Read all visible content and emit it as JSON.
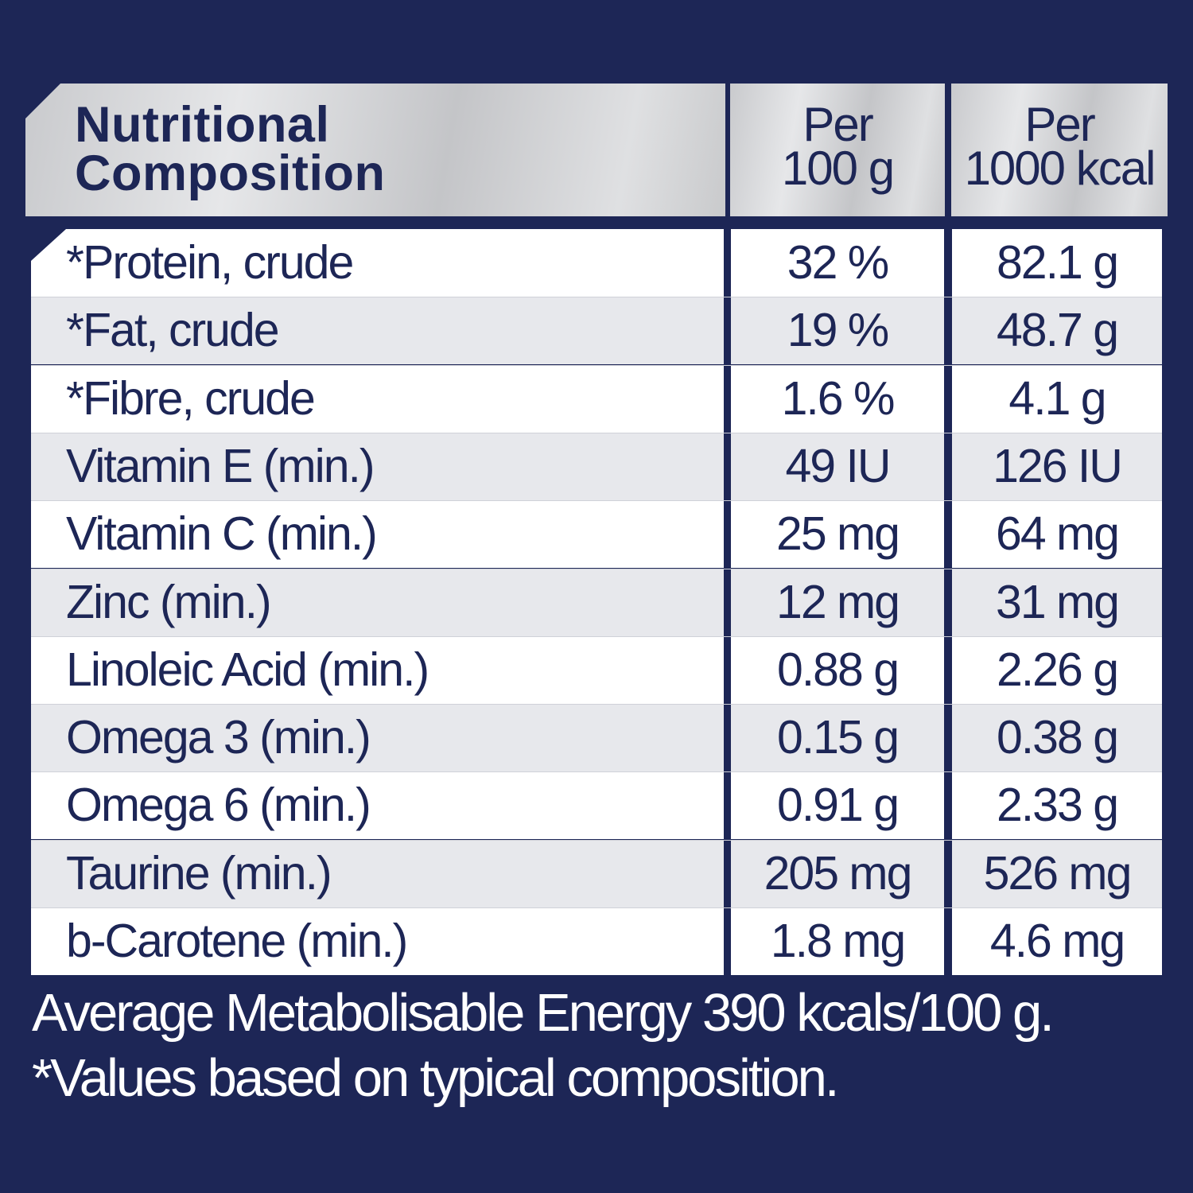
{
  "header": {
    "title_line1": "Nutritional",
    "title_line2": "Composition",
    "col2_line1": "Per",
    "col2_line2": "100 g",
    "col3_line1": "Per",
    "col3_line2": "1000 kcal"
  },
  "rows": [
    {
      "name": "*Protein, crude",
      "per100g": "32 %",
      "per1000kcal": "82.1 g"
    },
    {
      "name": "*Fat, crude",
      "per100g": "19 %",
      "per1000kcal": "48.7 g"
    },
    {
      "name": "*Fibre, crude",
      "per100g": "1.6 %",
      "per1000kcal": "4.1 g"
    },
    {
      "name": "Vitamin E (min.)",
      "per100g": "49 IU",
      "per1000kcal": "126 IU"
    },
    {
      "name": "Vitamin C (min.)",
      "per100g": "25 mg",
      "per1000kcal": "64 mg"
    },
    {
      "name": "Zinc (min.)",
      "per100g": "12 mg",
      "per1000kcal": "31 mg"
    },
    {
      "name": "Linoleic Acid (min.)",
      "per100g": "0.88 g",
      "per1000kcal": "2.26 g"
    },
    {
      "name": "Omega 3 (min.)",
      "per100g": "0.15 g",
      "per1000kcal": "0.38 g"
    },
    {
      "name": "Omega 6 (min.)",
      "per100g": "0.91 g",
      "per1000kcal": "2.33 g"
    },
    {
      "name": "Taurine (min.)",
      "per100g": "205 mg",
      "per1000kcal": "526 mg"
    },
    {
      "name": "b-Carotene (min.)",
      "per100g": "1.8 mg",
      "per1000kcal": "4.6 mg"
    }
  ],
  "footer": {
    "energy": "Average Metabolisable Energy 390 kcals/100 g.",
    "note": "*Values based on typical composition."
  },
  "colors": {
    "background": "#1d2656",
    "text": "#1d2656",
    "row_alt": "#e7e8ec"
  }
}
